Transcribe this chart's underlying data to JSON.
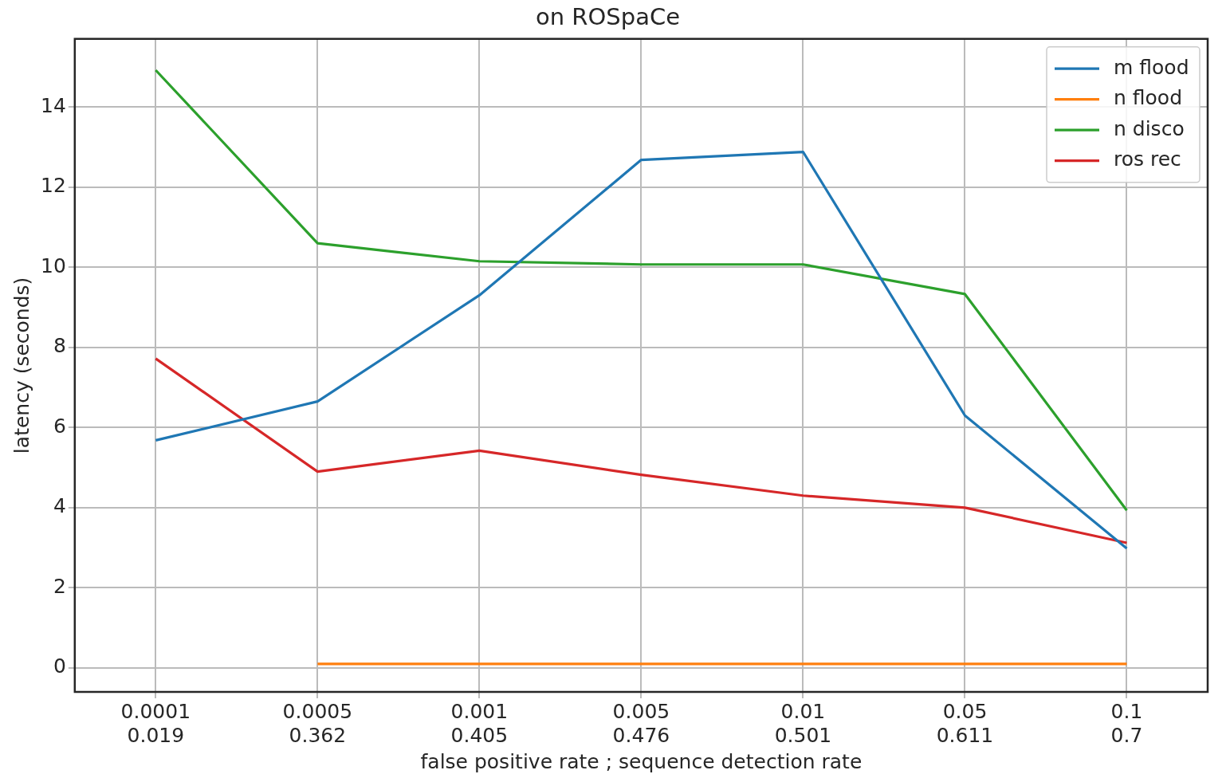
{
  "chart_data": {
    "type": "line",
    "title": "on ROSpaCe",
    "xlabel": "false positive rate ; sequence detection rate",
    "ylabel": "latency (seconds)",
    "categories": [
      "0.0001\n0.019",
      "0.0005\n0.362",
      "0.001\n0.405",
      "0.005\n0.476",
      "0.01\n0.501",
      "0.05\n0.611",
      "0.1\n0.7"
    ],
    "series": [
      {
        "name": "m flood",
        "color": "#1f77b4",
        "values": [
          5.68,
          6.65,
          9.3,
          12.68,
          12.88,
          6.3,
          2.98
        ]
      },
      {
        "name": "n flood",
        "color": "#ff7f0e",
        "values": [
          null,
          0.1,
          0.1,
          0.1,
          0.1,
          0.1,
          0.1
        ]
      },
      {
        "name": "n disco",
        "color": "#2ca02c",
        "values": [
          14.92,
          10.6,
          10.15,
          10.07,
          10.07,
          9.33,
          3.93
        ]
      },
      {
        "name": "ros rec",
        "color": "#d62728",
        "values": [
          7.72,
          4.9,
          5.42,
          4.82,
          4.3,
          4.0,
          3.12
        ]
      }
    ],
    "ylim": [
      -0.6,
      15.7
    ],
    "yticks": [
      0,
      2,
      4,
      6,
      8,
      10,
      12,
      14
    ],
    "grid": true,
    "legend": "top right"
  }
}
